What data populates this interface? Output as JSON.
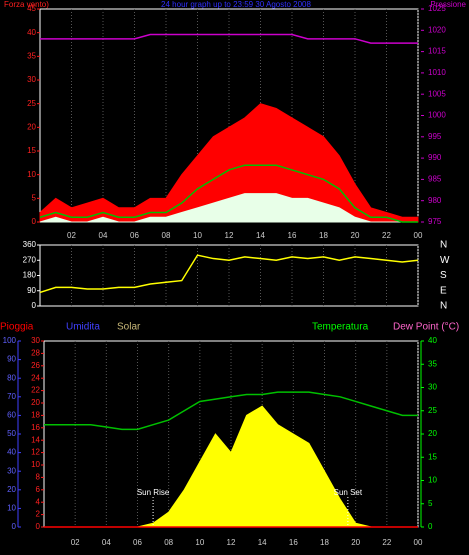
{
  "chart_data": [
    {
      "type": "line",
      "title": "24 hour graph up to 23:59 30 Agosto 2008",
      "ylabel": "Forza vento)",
      "y2label": "Pressione",
      "x": [
        0,
        1,
        2,
        3,
        4,
        5,
        6,
        7,
        8,
        9,
        10,
        11,
        12,
        13,
        14,
        15,
        16,
        17,
        18,
        19,
        20,
        21,
        22,
        23,
        24
      ],
      "xlim": [
        0,
        24
      ],
      "xticks": [
        {
          "value": 2,
          "label": "02"
        },
        {
          "value": 4,
          "label": "04"
        },
        {
          "value": 6,
          "label": "06"
        },
        {
          "value": 8,
          "label": "08"
        },
        10,
        12,
        14,
        16,
        18,
        20,
        22,
        {
          "value": 24,
          "label": "00"
        }
      ],
      "ylim": [
        0,
        45
      ],
      "yticks": [
        0,
        5,
        10,
        15,
        20,
        25,
        30,
        35,
        40,
        45
      ],
      "y2lim": [
        975,
        1025
      ],
      "y2ticks": [
        975,
        980,
        985,
        990,
        995,
        1000,
        1005,
        1010,
        1015,
        1020,
        1025
      ],
      "series": [
        {
          "color": "#ff0000",
          "fill": true,
          "values": [
            2,
            5,
            3,
            4,
            5,
            3,
            3,
            5,
            5,
            10,
            14,
            18,
            20,
            22,
            25,
            24,
            22,
            20,
            18,
            14,
            8,
            3,
            2,
            1,
            1
          ]
        },
        {
          "color": "#e8ffe8",
          "fill": true,
          "values": [
            0,
            1,
            0,
            0,
            1,
            0,
            0,
            1,
            1,
            2,
            3,
            4,
            5,
            6,
            6,
            6,
            5,
            5,
            4,
            3,
            1,
            0,
            0,
            0,
            0
          ]
        },
        {
          "color": "#00c000",
          "fill": false,
          "values": [
            1,
            2,
            1,
            1,
            2,
            1,
            1,
            2,
            2,
            4,
            7,
            9,
            11,
            12,
            12,
            12,
            11,
            10,
            9,
            7,
            3,
            1,
            1,
            0,
            0
          ]
        },
        {
          "color": "#cc00cc",
          "fill": false,
          "axis": "y2",
          "values": [
            1018,
            1018,
            1018,
            1018,
            1018,
            1018,
            1018,
            1019,
            1019,
            1019,
            1019,
            1019,
            1019,
            1019,
            1019,
            1019,
            1019,
            1018,
            1018,
            1018,
            1018,
            1017,
            1017,
            1017,
            1017
          ]
        }
      ]
    },
    {
      "type": "line",
      "x": [
        0,
        1,
        2,
        3,
        4,
        5,
        6,
        7,
        8,
        9,
        10,
        11,
        12,
        13,
        14,
        15,
        16,
        17,
        18,
        19,
        20,
        21,
        22,
        23,
        24
      ],
      "xlim": [
        0,
        24
      ],
      "ylim": [
        0,
        360
      ],
      "yticks": [
        0,
        90,
        180,
        270,
        360
      ],
      "compass": [
        "N",
        "W",
        "S",
        "E",
        "N"
      ],
      "series": [
        {
          "color": "#ffff00",
          "fill": false,
          "values": [
            80,
            110,
            110,
            100,
            100,
            110,
            110,
            130,
            140,
            150,
            300,
            280,
            270,
            290,
            280,
            270,
            290,
            280,
            290,
            270,
            290,
            280,
            270,
            260,
            270
          ]
        }
      ]
    },
    {
      "type": "line",
      "x": [
        0,
        1,
        2,
        3,
        4,
        5,
        6,
        7,
        8,
        9,
        10,
        11,
        12,
        13,
        14,
        15,
        16,
        17,
        18,
        19,
        20,
        21,
        22,
        23,
        24
      ],
      "xlim": [
        0,
        24
      ],
      "xticks": [
        {
          "value": 2,
          "label": "02"
        },
        {
          "value": 4,
          "label": "04"
        },
        {
          "value": 6,
          "label": "06"
        },
        {
          "value": 8,
          "label": "08"
        },
        10,
        12,
        14,
        16,
        18,
        20,
        22,
        {
          "value": 24,
          "label": "00"
        }
      ],
      "legend": [
        {
          "name": "Pioggia",
          "color": "#ff0000"
        },
        {
          "name": "Umidita",
          "color": "#4040ff"
        },
        {
          "name": "Solar",
          "color": "#c8b878"
        },
        {
          "name": "Temperatura",
          "color": "#00ff00"
        },
        {
          "name": "Dew Point (°C)",
          "color": "#ff66cc"
        }
      ],
      "ylim": [
        0,
        30
      ],
      "yticks": [
        0,
        2,
        4,
        6,
        8,
        10,
        12,
        14,
        16,
        18,
        20,
        22,
        24,
        26,
        28,
        30
      ],
      "y3lim": [
        0,
        100
      ],
      "y3ticks": [
        0,
        10,
        20,
        30,
        40,
        50,
        60,
        70,
        80,
        90,
        100
      ],
      "y2lim": [
        0,
        40
      ],
      "y2ticks": [
        0,
        5,
        10,
        15,
        20,
        25,
        30,
        35,
        40
      ],
      "annotations": [
        {
          "text": "Sun Rise",
          "x": 7
        },
        {
          "text": "Sun Set",
          "x": 19.5
        }
      ],
      "series": [
        {
          "color": "#ffff00",
          "fill": true,
          "axis": "y3",
          "values": [
            0,
            0,
            0,
            0,
            0,
            0,
            0,
            2,
            8,
            20,
            35,
            50,
            40,
            60,
            65,
            55,
            50,
            45,
            30,
            15,
            2,
            0,
            0,
            0,
            0
          ]
        },
        {
          "color": "#ff0000",
          "fill": false,
          "values": [
            0,
            0,
            0,
            0,
            0,
            0,
            0,
            0,
            0,
            0,
            0,
            0,
            0,
            0,
            0,
            0,
            0,
            0,
            0,
            0,
            0,
            0,
            0,
            0,
            0
          ]
        },
        {
          "color": "#00c000",
          "fill": false,
          "axis": "y2",
          "values": [
            22,
            22,
            22,
            22,
            21.5,
            21,
            21,
            22,
            23,
            25,
            27,
            27.5,
            28,
            28.5,
            28.5,
            29,
            29,
            29,
            28.5,
            28,
            27,
            26,
            25,
            24,
            24
          ]
        }
      ]
    }
  ]
}
